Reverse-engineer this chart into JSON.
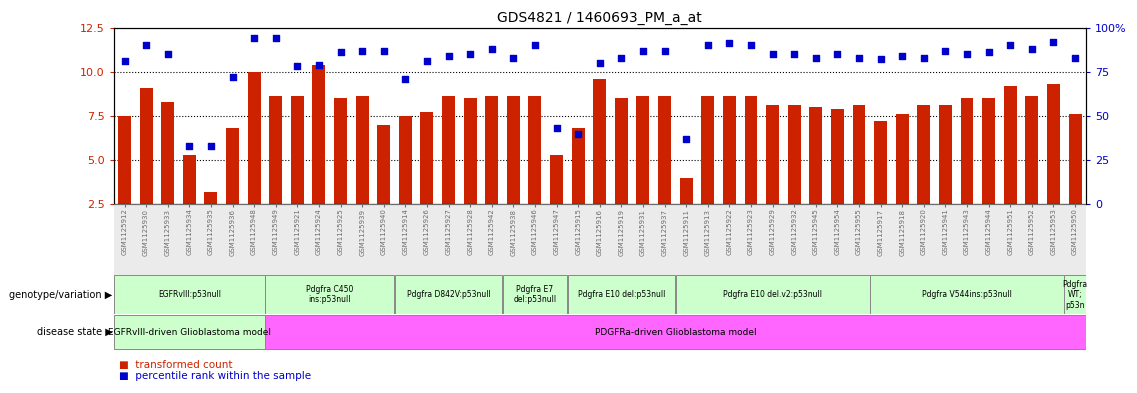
{
  "title": "GDS4821 / 1460693_PM_a_at",
  "samples": [
    "GSM1125912",
    "GSM1125930",
    "GSM1125933",
    "GSM1125934",
    "GSM1125935",
    "GSM1125936",
    "GSM1125948",
    "GSM1125949",
    "GSM1125921",
    "GSM1125924",
    "GSM1125925",
    "GSM1125939",
    "GSM1125940",
    "GSM1125914",
    "GSM1125926",
    "GSM1125927",
    "GSM1125928",
    "GSM1125942",
    "GSM1125938",
    "GSM1125946",
    "GSM1125947",
    "GSM1125915",
    "GSM1125916",
    "GSM1125919",
    "GSM1125931",
    "GSM1125937",
    "GSM1125911",
    "GSM1125913",
    "GSM1125922",
    "GSM1125923",
    "GSM1125929",
    "GSM1125932",
    "GSM1125945",
    "GSM1125954",
    "GSM1125955",
    "GSM1125917",
    "GSM1125918",
    "GSM1125920",
    "GSM1125941",
    "GSM1125943",
    "GSM1125944",
    "GSM1125951",
    "GSM1125952",
    "GSM1125953",
    "GSM1125950"
  ],
  "bar_values": [
    7.5,
    9.1,
    8.3,
    5.3,
    3.2,
    6.8,
    10.0,
    8.6,
    8.6,
    10.4,
    8.5,
    8.6,
    7.0,
    7.5,
    7.7,
    8.6,
    8.5,
    8.6,
    8.6,
    8.6,
    5.3,
    6.8,
    9.6,
    8.5,
    8.6,
    8.6,
    4.0,
    8.6,
    8.6,
    8.6,
    8.1,
    8.1,
    8.0,
    7.9,
    8.1,
    7.2,
    7.6,
    8.1,
    8.1,
    8.5,
    8.5,
    9.2,
    8.6,
    9.3,
    7.6
  ],
  "scatter_values": [
    10.6,
    11.5,
    11.0,
    5.8,
    5.8,
    9.7,
    11.9,
    11.9,
    10.3,
    10.4,
    11.1,
    11.2,
    11.2,
    9.6,
    10.6,
    10.9,
    11.0,
    11.3,
    10.8,
    11.5,
    6.8,
    6.5,
    10.5,
    10.8,
    11.2,
    11.2,
    6.2,
    11.5,
    11.6,
    11.5,
    11.0,
    11.0,
    10.8,
    11.0,
    10.8,
    10.7,
    10.9,
    10.8,
    11.2,
    11.0,
    11.1,
    11.5,
    11.3,
    11.7,
    10.8
  ],
  "ymin": 2.5,
  "ymax": 12.5,
  "yticks_left": [
    2.5,
    5.0,
    7.5,
    10.0,
    12.5
  ],
  "yticks_right_labels": [
    "0",
    "25",
    "50",
    "75",
    "100%"
  ],
  "bar_color": "#cc2200",
  "scatter_color": "#0000cc",
  "bg_color": "#ffffff",
  "title_fontsize": 10,
  "xtick_bg": "#d8d8d8",
  "genotype_groups": [
    {
      "label": "EGFRvIII:p53null",
      "start": 0,
      "end": 7,
      "color": "#ccffcc"
    },
    {
      "label": "Pdgfra C450\nins:p53null",
      "start": 7,
      "end": 13,
      "color": "#ccffcc"
    },
    {
      "label": "Pdgfra D842V:p53null",
      "start": 13,
      "end": 18,
      "color": "#ccffcc"
    },
    {
      "label": "Pdgfra E7\ndel:p53null",
      "start": 18,
      "end": 21,
      "color": "#ccffcc"
    },
    {
      "label": "Pdgfra E10 del:p53null",
      "start": 21,
      "end": 26,
      "color": "#ccffcc"
    },
    {
      "label": "Pdgfra E10 del.v2:p53null",
      "start": 26,
      "end": 35,
      "color": "#ccffcc"
    },
    {
      "label": "Pdgfra V544ins:p53null",
      "start": 35,
      "end": 44,
      "color": "#ccffcc"
    },
    {
      "label": "Pdgfra\nWT;\np53n",
      "start": 44,
      "end": 45,
      "color": "#ccffcc"
    }
  ],
  "disease_groups": [
    {
      "label": "EGFRvIII-driven Glioblastoma model",
      "start": 0,
      "end": 7,
      "color": "#ccffcc"
    },
    {
      "label": "PDGFRa-driven Glioblastoma model",
      "start": 7,
      "end": 45,
      "color": "#ff66ff"
    }
  ],
  "geno_label": "genotype/variation",
  "dis_label": "disease state",
  "legend_bar": "transformed count",
  "legend_scatter": "percentile rank within the sample"
}
